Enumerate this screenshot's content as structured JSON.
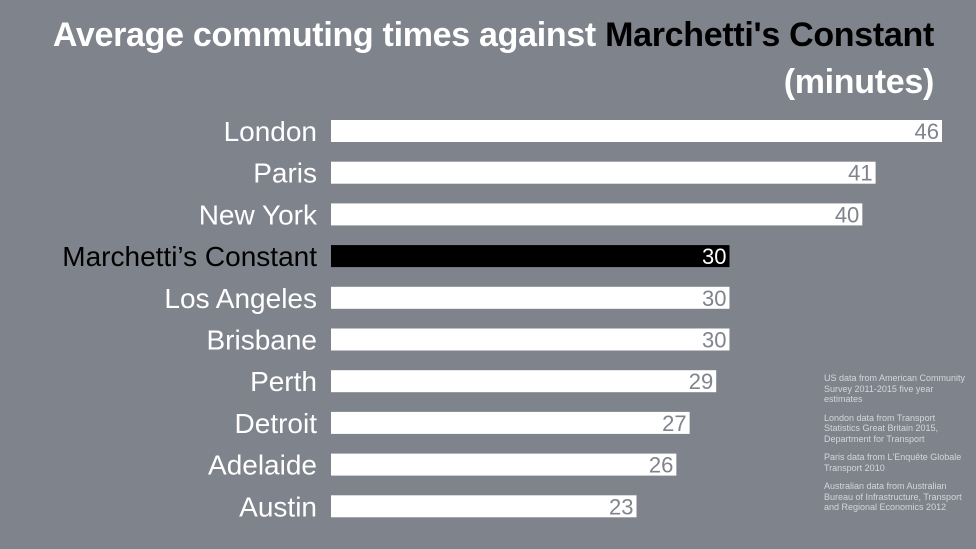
{
  "title": {
    "part1": "Average commuting times against ",
    "highlight": "Marchetti's Constant",
    "part2": "(minutes)"
  },
  "chart_data": {
    "type": "bar",
    "orientation": "horizontal",
    "categories": [
      "London",
      "Paris",
      "New York",
      "Marchetti’s Constant",
      "Los Angeles",
      "Brisbane",
      "Perth",
      "Detroit",
      "Adelaide",
      "Austin"
    ],
    "values": [
      46,
      41,
      40,
      30,
      30,
      30,
      29,
      27,
      26,
      23
    ],
    "value_labels": [
      "46",
      "41",
      "40",
      "30",
      "30",
      "30",
      "29",
      "27",
      "26",
      "23"
    ],
    "highlight_index": 3,
    "xlim": [
      0,
      46
    ],
    "xlabel": "",
    "ylabel": "",
    "grid": false,
    "legend": "none",
    "colors": {
      "background": "#7f838c",
      "bar": "#ffffff",
      "highlight_bar": "#000000",
      "value_text": "#7f838c",
      "highlight_value_text": "#ffffff"
    }
  },
  "notes": [
    "US data from American Community Survey 2011-2015 five year estimates",
    "London data from Transport Statistics Great Britain 2015, Department for Transport",
    "Paris data from L'Enquête Globale Transport 2010",
    "Australian data from Australian Bureau of Infrastructure, Transport and Regional Economics 2012"
  ]
}
